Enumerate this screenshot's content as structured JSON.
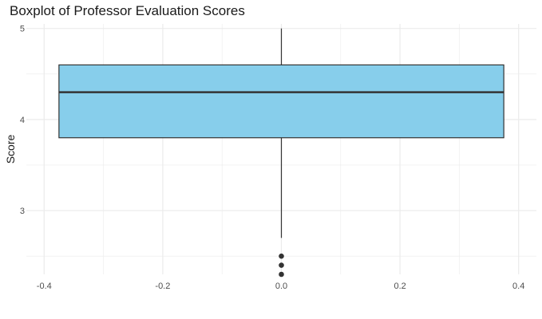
{
  "chart_data": {
    "type": "boxplot",
    "title": "Boxplot of Professor Evaluation Scores",
    "xlabel": "",
    "ylabel": "Score",
    "xlim": [
      -0.43,
      0.43
    ],
    "ylim": [
      2.3,
      5.05
    ],
    "x_ticks": [
      "-0.4",
      "-0.2",
      "0.0",
      "0.2",
      "0.4"
    ],
    "y_ticks": [
      "3",
      "4",
      "5"
    ],
    "grid": true,
    "legend": "none",
    "series": [
      {
        "x_center": 0.0,
        "box_left": -0.375,
        "box_right": 0.375,
        "min": 2.7,
        "q1": 3.8,
        "median": 4.3,
        "q3": 4.6,
        "max": 5.0,
        "outliers": [
          2.3,
          2.4,
          2.5
        ]
      }
    ],
    "colors": {
      "box_fill": "#87CEEB",
      "box_stroke": "#333333",
      "grid": "#ebebeb",
      "point": "#333333"
    }
  }
}
